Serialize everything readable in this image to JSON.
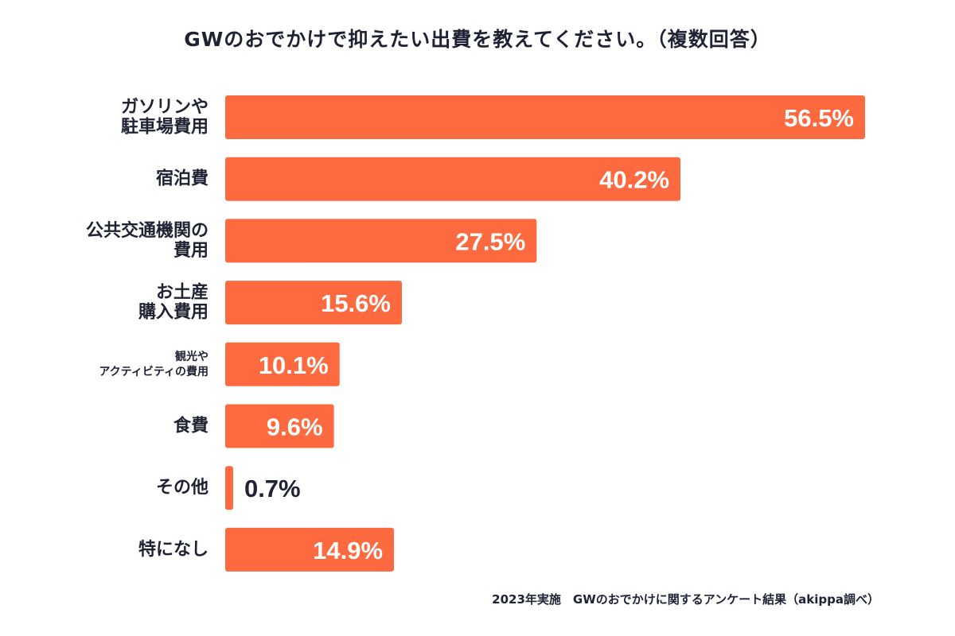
{
  "title": "GWのおでかけで抑えたい出費を教えてください。（複数回答）",
  "footnote": "2023年実施　GWのおでかけに関するアンケート結果（akippa調べ）",
  "colors": {
    "bar": "#fd6a3f",
    "label_inside": "#ffffff",
    "label_outside": "#1f2233",
    "text": "#1f2233"
  },
  "chart_data": {
    "type": "bar",
    "orientation": "horizontal",
    "title": "GWのおでかけで抑えたい出費を教えてください。（複数回答）",
    "categories": [
      [
        "ガソリンや",
        "駐車場費用"
      ],
      [
        "宿泊費"
      ],
      [
        "公共交通機関の",
        "費用"
      ],
      [
        "お土産",
        "購入費用"
      ],
      [
        "観光や",
        "アクティビティの費用"
      ],
      [
        "食費"
      ],
      [
        "その他"
      ],
      [
        "特になし"
      ]
    ],
    "values": [
      56.5,
      40.2,
      27.5,
      15.6,
      10.1,
      9.6,
      0.7,
      14.9
    ],
    "value_labels": [
      "56.5%",
      "40.2%",
      "27.5%",
      "15.6%",
      "10.1%",
      "9.6%",
      "0.7%",
      "14.9%"
    ],
    "unit": "%",
    "xlabel": "",
    "ylabel": "",
    "grid": false,
    "legend": "none"
  }
}
